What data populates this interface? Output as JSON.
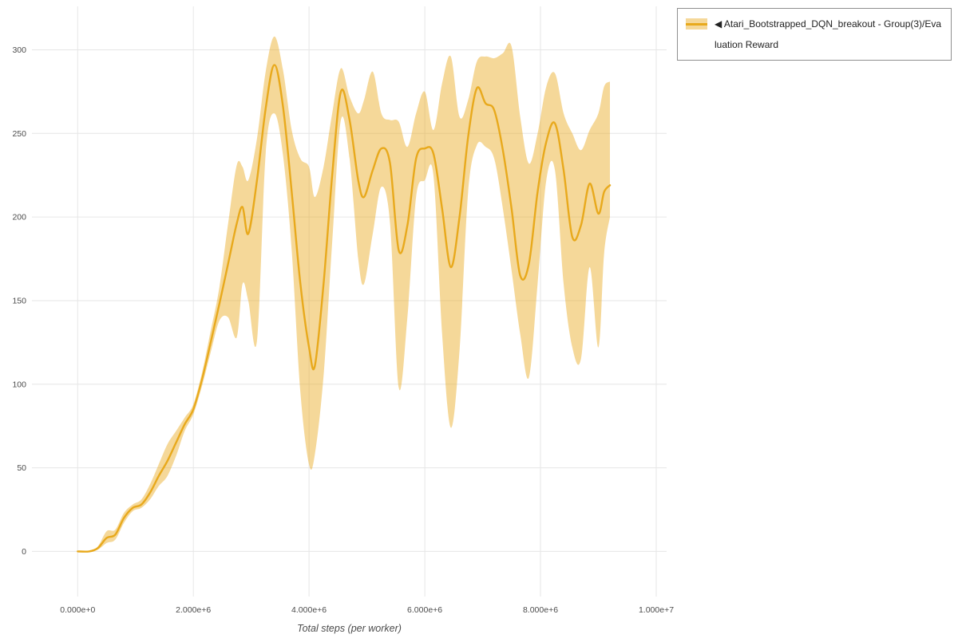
{
  "page": {
    "background": "#ffffff"
  },
  "chart_data": {
    "type": "line",
    "title": "",
    "xlabel": "Total steps (per worker)",
    "ylabel": "",
    "grid": true,
    "x_unit": 1000000,
    "xlim_units": [
      -0.79,
      10.18
    ],
    "ylim": [
      -27,
      326
    ],
    "x_ticks": [
      {
        "value": 0,
        "label": "0.000e+0"
      },
      {
        "value": 2,
        "label": "2.000e+6"
      },
      {
        "value": 4,
        "label": "4.000e+6"
      },
      {
        "value": 6,
        "label": "6.000e+6"
      },
      {
        "value": 8,
        "label": "8.000e+6"
      },
      {
        "value": 10,
        "label": "1.000e+7"
      }
    ],
    "y_ticks": [
      {
        "value": 0,
        "label": "0"
      },
      {
        "value": 50,
        "label": "50"
      },
      {
        "value": 100,
        "label": "100"
      },
      {
        "value": 150,
        "label": "150"
      },
      {
        "value": 200,
        "label": "200"
      },
      {
        "value": 250,
        "label": "250"
      },
      {
        "value": 300,
        "label": "300"
      }
    ],
    "legend": {
      "position": "outside-top-right",
      "items": [
        {
          "toggle_icon": "◀",
          "label": "Atari_Bootstrapped_DQN_breakout - Group(3)/Evaluation Reward",
          "color": "#E8A91C"
        }
      ]
    },
    "colors": {
      "grid": "#e6e6e6",
      "tick_text": "#4c4c4c",
      "axis_title": "#4c4c4c",
      "line": "#E8A91C"
    },
    "series": [
      {
        "name": "Atari_Bootstrapped_DQN_breakout - Group(3)/Evaluation Reward",
        "type": "line-with-band",
        "color": "#E8A91C",
        "band_opacity": 0.45,
        "line_width": 2.4,
        "x_units": [
          0,
          0.2,
          0.35,
          0.5,
          0.65,
          0.8,
          0.95,
          1.1,
          1.25,
          1.4,
          1.55,
          1.7,
          1.85,
          2.0,
          2.15,
          2.3,
          2.45,
          2.6,
          2.75,
          2.85,
          2.95,
          3.1,
          3.25,
          3.4,
          3.55,
          3.7,
          3.85,
          4.0,
          4.1,
          4.25,
          4.4,
          4.55,
          4.7,
          4.85,
          4.95,
          5.1,
          5.25,
          5.4,
          5.55,
          5.7,
          5.85,
          6.0,
          6.15,
          6.3,
          6.45,
          6.6,
          6.75,
          6.9,
          7.05,
          7.2,
          7.35,
          7.5,
          7.65,
          7.8,
          7.95,
          8.1,
          8.25,
          8.4,
          8.55,
          8.7,
          8.85,
          9.0,
          9.1,
          9.2
        ],
        "mean": [
          0,
          0,
          2,
          8,
          10,
          20,
          26,
          28,
          35,
          45,
          54,
          65,
          76,
          85,
          103,
          125,
          148,
          172,
          196,
          206,
          190,
          222,
          265,
          291,
          266,
          215,
          160,
          122,
          111,
          160,
          225,
          275,
          258,
          222,
          212,
          228,
          241,
          232,
          180,
          195,
          235,
          241,
          238,
          205,
          170,
          200,
          248,
          277,
          268,
          264,
          240,
          205,
          165,
          172,
          215,
          245,
          256,
          228,
          188,
          195,
          220,
          202,
          215,
          219
        ],
        "upper": [
          0,
          0,
          3,
          12,
          13,
          23,
          28,
          31,
          40,
          52,
          64,
          72,
          80,
          88,
          107,
          132,
          158,
          196,
          231,
          230,
          222,
          247,
          287,
          308,
          288,
          252,
          235,
          230,
          212,
          230,
          262,
          289,
          272,
          262,
          270,
          287,
          262,
          258,
          257,
          242,
          262,
          275,
          252,
          280,
          296,
          260,
          270,
          293,
          296,
          295,
          298,
          302,
          260,
          232,
          250,
          278,
          286,
          262,
          250,
          240,
          252,
          262,
          278,
          281
        ],
        "lower": [
          0,
          0,
          1,
          5,
          7,
          17,
          24,
          26,
          31,
          39,
          45,
          57,
          72,
          82,
          99,
          119,
          138,
          140,
          128,
          160,
          150,
          126,
          238,
          262,
          237,
          180,
          95,
          52,
          58,
          105,
          185,
          258,
          235,
          175,
          160,
          190,
          218,
          196,
          98,
          140,
          212,
          222,
          225,
          130,
          74,
          120,
          215,
          243,
          242,
          235,
          205,
          168,
          130,
          104,
          160,
          222,
          228,
          160,
          122,
          115,
          170,
          122,
          178,
          200
        ]
      }
    ]
  }
}
